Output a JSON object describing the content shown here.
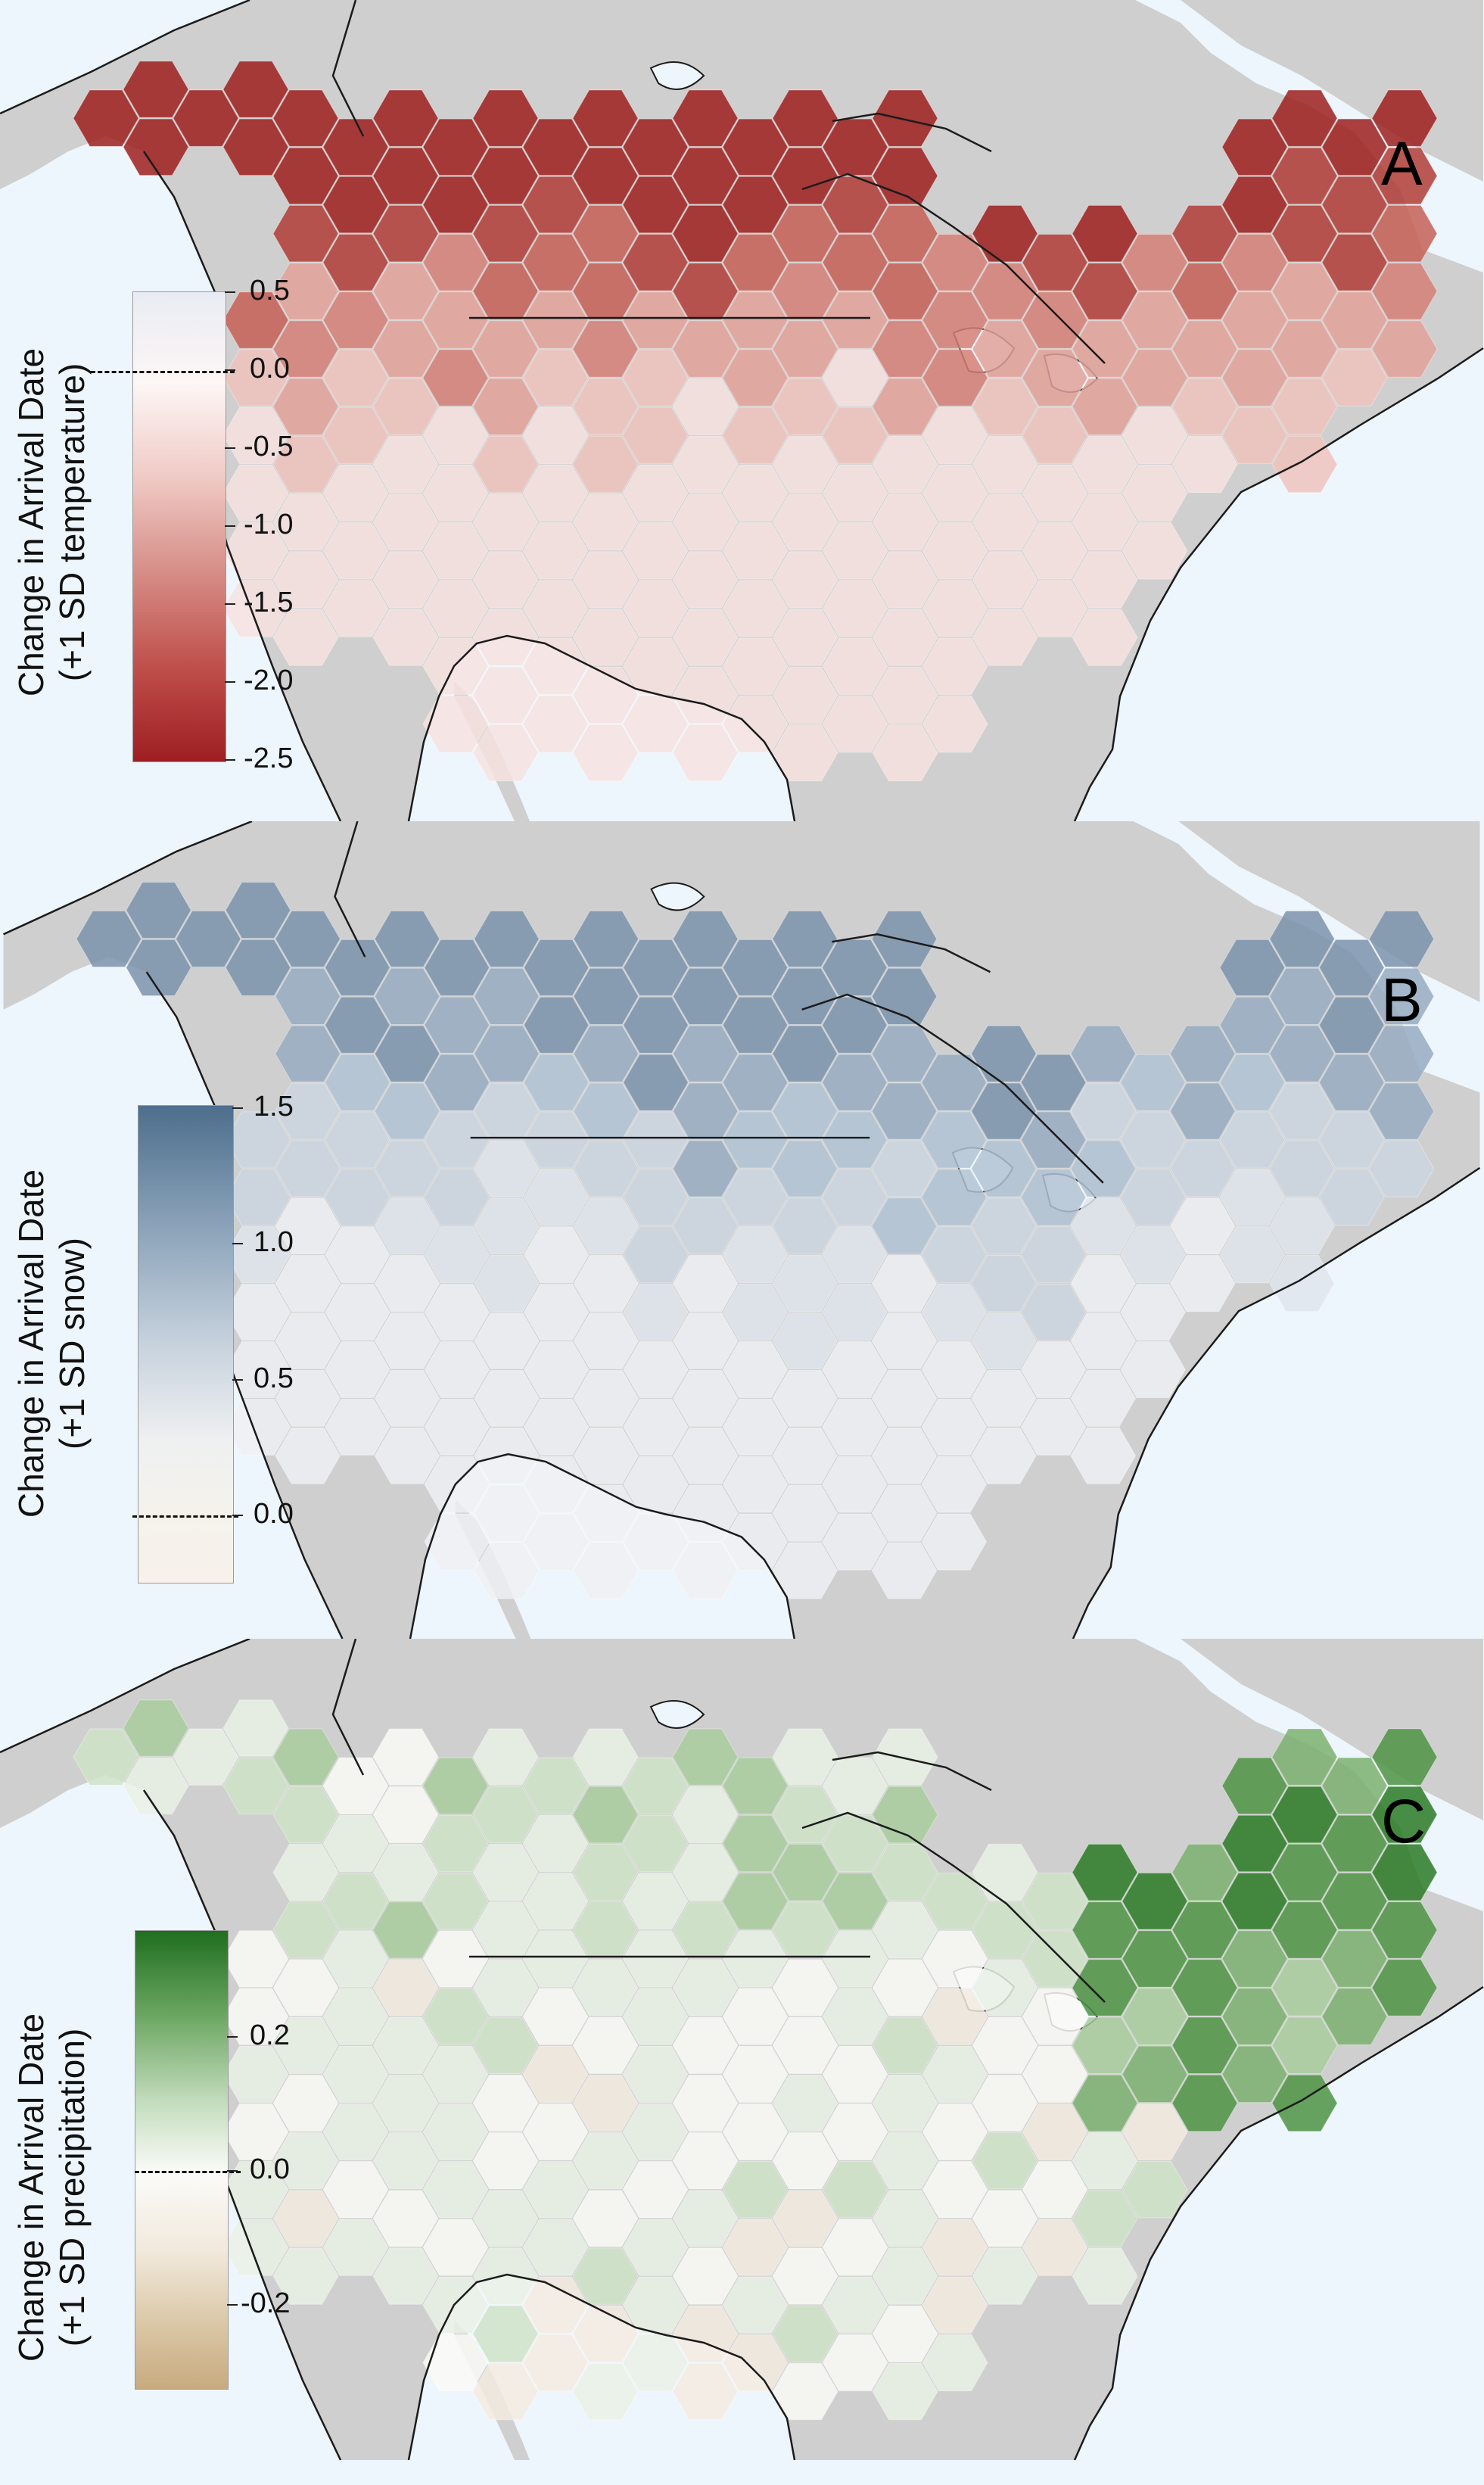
{
  "panels": [
    {
      "id": "A",
      "letter": "A",
      "legend": {
        "title_line1": "Change in Arrival Date",
        "title_line2": "(+1 SD temperature)",
        "ticks": [
          "0.5",
          "0.0",
          "-0.5",
          "-1.0",
          "-1.5",
          "-2.0",
          "-2.5"
        ],
        "colors": {
          "top": "#e9ecf4",
          "zero": "#fdf6f5",
          "bottom": "#9e1e22"
        }
      },
      "hex_palette": [
        "#f6e2df",
        "#eec3bd",
        "#e2a199",
        "#d57f76",
        "#c45f56",
        "#b03c36",
        "#9c1f1d"
      ]
    },
    {
      "id": "B",
      "letter": "B",
      "legend": {
        "title_line1": "Change in Arrival Date",
        "title_line2": "(+1 SD snow)",
        "ticks": [
          "1.5",
          "1.0",
          "0.5",
          "0.0"
        ],
        "colors": {
          "top": "#4d6e8c",
          "zero": "#f2f2ef",
          "bottom": "#f7f1ea"
        }
      },
      "hex_palette": [
        "#eef0f3",
        "#dfe5ec",
        "#cbd6e1",
        "#b2c3d4",
        "#96abc1",
        "#7b93ac"
      ]
    },
    {
      "id": "C",
      "letter": "C",
      "legend": {
        "title_line1": "Change in Arrival Date",
        "title_line2": "(+1 SD precipitation)",
        "ticks": [
          "0.2",
          "0.0",
          "-0.2"
        ],
        "colors": {
          "top": "#1f6e1f",
          "zero": "#fbfbf8",
          "bottom": "#c8aa7e"
        }
      },
      "hex_palette": [
        "#f3ebe0",
        "#fafaf7",
        "#e9f1e5",
        "#cfe3c8",
        "#a8cc9d",
        "#7bb06f",
        "#4e9343",
        "#2a7a25"
      ]
    }
  ],
  "colors": {
    "ocean": "#eef6fd",
    "land": "#cfcfcf",
    "coast": "#1b1b1b"
  }
}
